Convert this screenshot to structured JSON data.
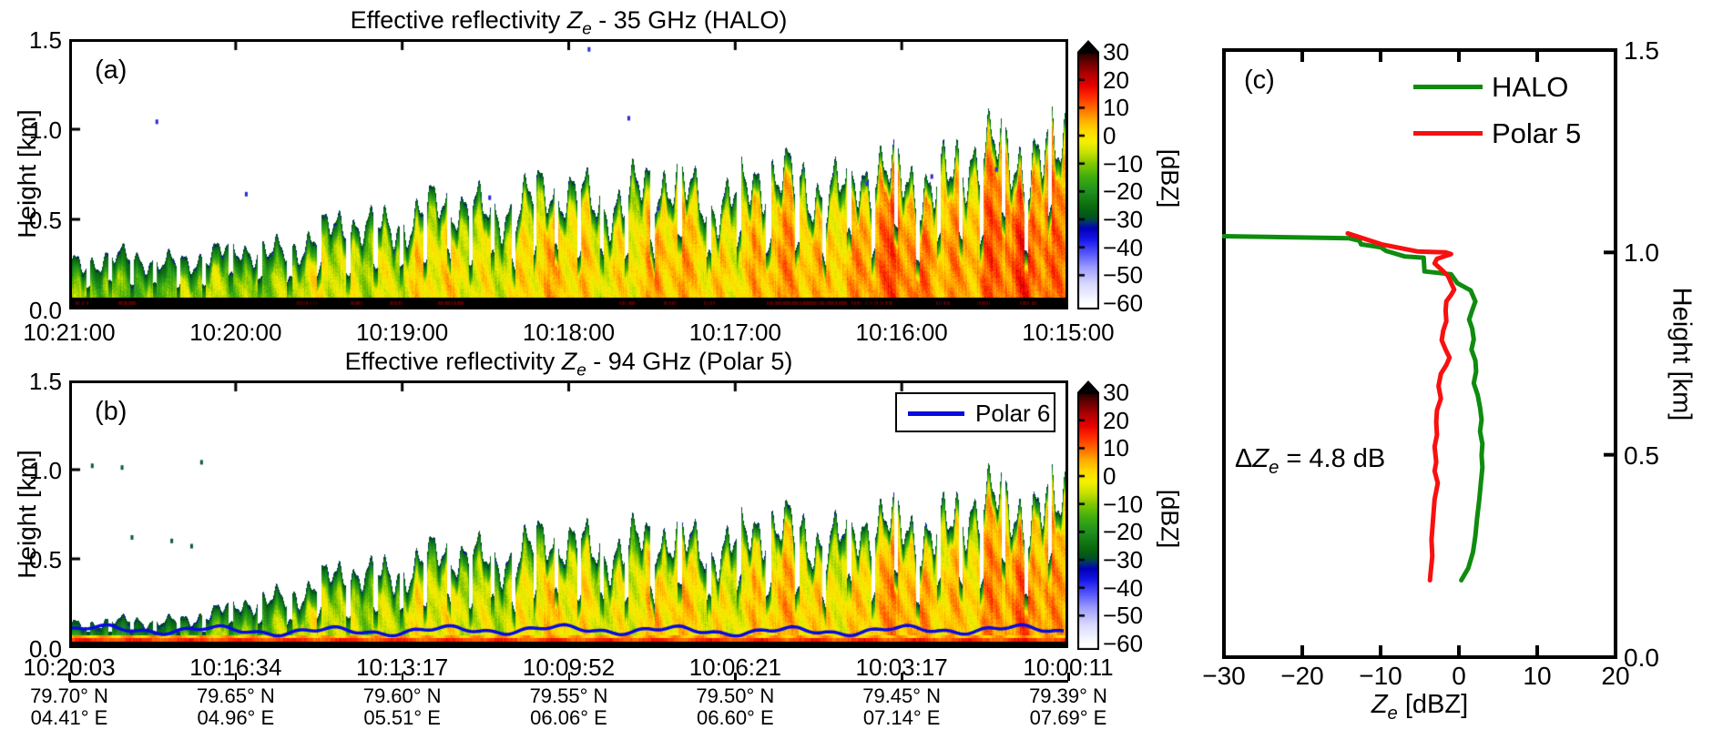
{
  "figure": {
    "background": "#ffffff"
  },
  "colormap": {
    "stops": [
      [
        -60,
        "#ffffff"
      ],
      [
        -53,
        "#d8d8ff"
      ],
      [
        -47,
        "#9b9bff"
      ],
      [
        -42,
        "#5555fb"
      ],
      [
        -37,
        "#1515e8"
      ],
      [
        -33,
        "#0000b4"
      ],
      [
        -30.5,
        "#003d62"
      ],
      [
        -29,
        "#00551e"
      ],
      [
        -25,
        "#0c6e0c"
      ],
      [
        -20,
        "#1f8f1f"
      ],
      [
        -15,
        "#3cab10"
      ],
      [
        -10,
        "#80c800"
      ],
      [
        -6,
        "#c8e000"
      ],
      [
        -2,
        "#f5f000"
      ],
      [
        2,
        "#ffd800"
      ],
      [
        6,
        "#ffa800"
      ],
      [
        10,
        "#ff6a00"
      ],
      [
        14,
        "#ff2e00"
      ],
      [
        18,
        "#e80000"
      ],
      [
        22,
        "#b40000"
      ],
      [
        26,
        "#700000"
      ],
      [
        30,
        "#1e0000"
      ]
    ]
  },
  "chart_data": [
    {
      "panel": "(a)",
      "type": "heatmap",
      "title": {
        "prefix": "Effective reflectivity ",
        "symbol": "Z",
        "symbol_sub": "e",
        "suffix": " - 35 GHz (HALO)"
      },
      "x_ticks": [
        "10:21:00",
        "10:20:00",
        "10:19:00",
        "10:18:00",
        "10:17:00",
        "10:16:00",
        "10:15:00"
      ],
      "y_label": "Height [km]",
      "y_ticks": [
        "1.5",
        "1.0",
        "0.5",
        "0.0"
      ],
      "y_range_km": [
        0.0,
        1.5
      ],
      "colorbar": {
        "label": "[dBZ]",
        "ticks": [
          "30",
          "20",
          "10",
          "0",
          "−10",
          "−20",
          "−30",
          "−40",
          "−50",
          "−60"
        ],
        "range": [
          -60,
          30
        ]
      },
      "field": {
        "surface_echo_top_km": 0.052,
        "cloud_top_km": [
          0.26,
          0.26,
          0.27,
          0.29,
          0.33,
          0.4,
          0.47,
          0.52,
          0.56,
          0.6,
          0.62,
          0.64,
          0.66,
          0.65,
          0.68,
          0.72,
          0.7,
          0.74,
          0.8,
          0.86,
          0.97
        ],
        "core_dbz": [
          -13,
          -12,
          -11,
          -10,
          -8,
          -6,
          -4,
          -3,
          -2,
          -1,
          0,
          0,
          1,
          2,
          2,
          3,
          7,
          6,
          7,
          8,
          9
        ],
        "specks": [
          {
            "f": 0.085,
            "h": 1.05
          },
          {
            "f": 0.52,
            "h": 1.46
          },
          {
            "f": 0.56,
            "h": 1.07
          },
          {
            "f": 0.175,
            "h": 0.64
          },
          {
            "f": 0.42,
            "h": 0.62
          },
          {
            "f": 0.59,
            "h": 0.56
          },
          {
            "f": 0.8,
            "h": 0.7
          },
          {
            "f": 0.865,
            "h": 0.74
          },
          {
            "f": 0.93,
            "h": 0.78
          }
        ],
        "speck_color": "#2a2ad4"
      }
    },
    {
      "panel": "(b)",
      "type": "heatmap",
      "title": {
        "prefix": "Effective reflectivity ",
        "symbol": "Z",
        "symbol_sub": "e",
        "suffix": " - 94 GHz (Polar 5)"
      },
      "x_ticks": [
        "10:20:03",
        "10:16:34",
        "10:13:17",
        "10:09:52",
        "10:06:21",
        "10:03:17",
        "10:00:11"
      ],
      "y_label": "Height [km]",
      "y_ticks": [
        "1.5",
        "1.0",
        "0.5",
        "0.0"
      ],
      "y_range_km": [
        0.0,
        1.5
      ],
      "colorbar": {
        "label": "[dBZ]",
        "ticks": [
          "30",
          "20",
          "10",
          "0",
          "−10",
          "−20",
          "−30",
          "−40",
          "−50",
          "−60"
        ],
        "range": [
          -60,
          30
        ]
      },
      "legend": {
        "label": "Polar 6",
        "color": "#0a0ae0"
      },
      "polar6_track_km": 0.085,
      "geo_ticks": {
        "lat": [
          "79.70° N",
          "79.65° N",
          "79.60° N",
          "79.55° N",
          "79.50° N",
          "79.45° N",
          "79.39° N"
        ],
        "lon": [
          "04.41° E",
          "04.96° E",
          "05.51° E",
          "06.06° E",
          "06.60° E",
          "07.14° E",
          "07.69° E"
        ]
      },
      "field": {
        "surface_echo_top_km": 0.022,
        "surface_bright_band": {
          "from_km": 0.022,
          "to_km": 0.042,
          "dbz": 13
        },
        "cloud_base_km": 0.058,
        "cloud_top_km": [
          0.13,
          0.13,
          0.15,
          0.19,
          0.28,
          0.35,
          0.42,
          0.47,
          0.51,
          0.55,
          0.57,
          0.59,
          0.57,
          0.61,
          0.63,
          0.66,
          0.64,
          0.69,
          0.74,
          0.8,
          0.88
        ],
        "core_dbz": [
          -15,
          -14,
          -13,
          -11,
          -9,
          -7,
          -6,
          -5,
          -4,
          -3,
          -2,
          -2,
          -1,
          0,
          0,
          1,
          2,
          3,
          4,
          5,
          6
        ],
        "specks": [
          {
            "f": 0.02,
            "h": 1.03
          },
          {
            "f": 0.05,
            "h": 1.02
          },
          {
            "f": 0.13,
            "h": 1.05
          },
          {
            "f": 0.06,
            "h": 0.62
          },
          {
            "f": 0.1,
            "h": 0.6
          },
          {
            "f": 0.12,
            "h": 0.57
          }
        ],
        "speck_color": "#0a5a3a"
      }
    },
    {
      "panel": "(c)",
      "type": "line",
      "x_label": {
        "symbol": "Z",
        "symbol_sub": "e",
        "suffix": " [dBZ]"
      },
      "x_ticks": [
        "−30",
        "−20",
        "−10",
        "0",
        "10",
        "20"
      ],
      "x_range": [
        -30,
        20
      ],
      "y_label": "Height [km]",
      "y_ticks": [
        "1.5",
        "1.0",
        "0.5",
        "0.0"
      ],
      "y_range_km": [
        0.0,
        1.5
      ],
      "annotation": {
        "prefix": "Δ",
        "symbol": "Z",
        "symbol_sub": "e",
        "suffix": " = 4.8 dB"
      },
      "series": [
        {
          "name": "HALO",
          "color": "#0f8c0f",
          "points": [
            [
              -30,
              1.04
            ],
            [
              -14,
              1.035
            ],
            [
              -12.7,
              1.029
            ],
            [
              -12.5,
              1.02
            ],
            [
              -10,
              1.013
            ],
            [
              -9.3,
              1.004
            ],
            [
              -6.9,
              0.99
            ],
            [
              -4.5,
              0.987
            ],
            [
              -4.4,
              0.953
            ],
            [
              -1.0,
              0.946
            ],
            [
              -0.2,
              0.924
            ],
            [
              1.5,
              0.906
            ],
            [
              2.1,
              0.879
            ],
            [
              1.7,
              0.857
            ],
            [
              1.3,
              0.834
            ],
            [
              1.7,
              0.812
            ],
            [
              1.9,
              0.785
            ],
            [
              1.6,
              0.76
            ],
            [
              2.1,
              0.733
            ],
            [
              2.2,
              0.706
            ],
            [
              1.9,
              0.677
            ],
            [
              2.4,
              0.648
            ],
            [
              2.7,
              0.617
            ],
            [
              2.9,
              0.587
            ],
            [
              2.7,
              0.558
            ],
            [
              3.0,
              0.527
            ],
            [
              2.9,
              0.498
            ],
            [
              3.0,
              0.469
            ],
            [
              2.8,
              0.43
            ],
            [
              2.6,
              0.39
            ],
            [
              2.3,
              0.34
            ],
            [
              2.1,
              0.3
            ],
            [
              1.8,
              0.26
            ],
            [
              1.2,
              0.22
            ],
            [
              0.3,
              0.19
            ]
          ]
        },
        {
          "name": "Polar 5",
          "color": "#f81010",
          "points": [
            [
              -14.2,
              1.047
            ],
            [
              -9.9,
              1.02
            ],
            [
              -5.2,
              1.002
            ],
            [
              -1.7,
              1.0
            ],
            [
              -1.0,
              0.996
            ],
            [
              -2.8,
              0.984
            ],
            [
              -3.1,
              0.973
            ],
            [
              -2.2,
              0.957
            ],
            [
              -1.4,
              0.942
            ],
            [
              -0.6,
              0.908
            ],
            [
              -1.0,
              0.895
            ],
            [
              -1.6,
              0.879
            ],
            [
              -1.7,
              0.857
            ],
            [
              -1.6,
              0.83
            ],
            [
              -2.0,
              0.807
            ],
            [
              -2.2,
              0.783
            ],
            [
              -1.7,
              0.76
            ],
            [
              -1.2,
              0.74
            ],
            [
              -1.6,
              0.722
            ],
            [
              -2.3,
              0.7
            ],
            [
              -2.6,
              0.67
            ],
            [
              -2.3,
              0.639
            ],
            [
              -2.8,
              0.61
            ],
            [
              -2.9,
              0.581
            ],
            [
              -2.8,
              0.549
            ],
            [
              -3.1,
              0.52
            ],
            [
              -2.9,
              0.482
            ],
            [
              -3.1,
              0.46
            ],
            [
              -2.7,
              0.43
            ],
            [
              -3.1,
              0.39
            ],
            [
              -3.3,
              0.34
            ],
            [
              -3.5,
              0.29
            ],
            [
              -3.4,
              0.25
            ],
            [
              -3.6,
              0.21
            ],
            [
              -3.7,
              0.19
            ]
          ]
        }
      ]
    }
  ]
}
